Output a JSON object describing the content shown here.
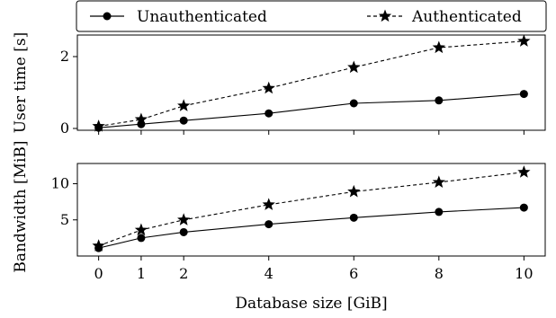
{
  "legend": {
    "unauth_label": "Unauthenticated",
    "auth_label": "Authenticated"
  },
  "chart_data": [
    {
      "type": "line",
      "ylabel": "User time [s]",
      "xlabel": "",
      "x": [
        0,
        1,
        2,
        4,
        6,
        8,
        10
      ],
      "xlim": [
        -0.5,
        10.5
      ],
      "ylim": [
        -0.05,
        2.6
      ],
      "yticks": [
        0,
        2
      ],
      "series": [
        {
          "name": "Unauthenticated",
          "marker": "circle",
          "dash": "solid",
          "values": [
            0.02,
            0.12,
            0.22,
            0.42,
            0.7,
            0.78,
            0.96
          ]
        },
        {
          "name": "Authenticated",
          "marker": "star",
          "dash": "dashed",
          "values": [
            0.06,
            0.25,
            0.63,
            1.12,
            1.7,
            2.25,
            2.43
          ]
        }
      ],
      "legend_position": "top"
    },
    {
      "type": "line",
      "ylabel": "Bandwidth [MiB]",
      "xlabel": "Database size [GiB]",
      "x": [
        0,
        1,
        2,
        4,
        6,
        8,
        10
      ],
      "xticks": [
        "0",
        "1",
        "2",
        "4",
        "6",
        "8",
        "10"
      ],
      "xlim": [
        -0.5,
        10.5
      ],
      "ylim": [
        0,
        12.8
      ],
      "yticks": [
        5,
        10
      ],
      "series": [
        {
          "name": "Unauthenticated",
          "marker": "circle",
          "dash": "solid",
          "values": [
            1.1,
            2.5,
            3.3,
            4.4,
            5.3,
            6.1,
            6.7
          ]
        },
        {
          "name": "Authenticated",
          "marker": "star",
          "dash": "dashed",
          "values": [
            1.4,
            3.6,
            5.0,
            7.1,
            8.9,
            10.2,
            11.6
          ]
        }
      ]
    }
  ]
}
